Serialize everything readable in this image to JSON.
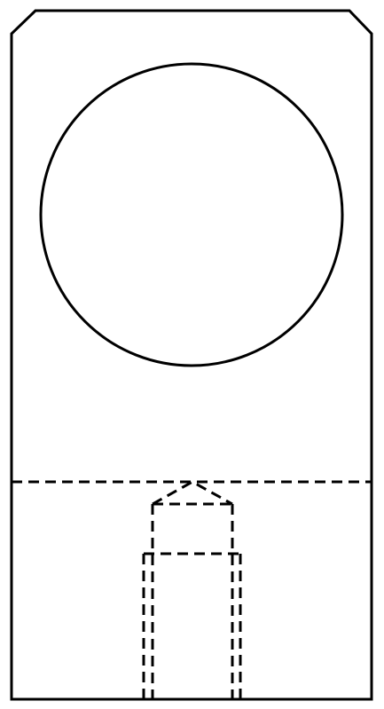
{
  "drawing": {
    "line_color": "#000000",
    "background_color": "#ffffff",
    "line_styles": {
      "visible_edges": "solid",
      "hidden_edges": "dashed"
    },
    "features": [
      "chamfered-rectangular-plate-outline",
      "through-hole-circle",
      "hidden-section-boundary",
      "hidden-drilled-hole-with-cone-tip",
      "hidden-counterbore"
    ]
  }
}
